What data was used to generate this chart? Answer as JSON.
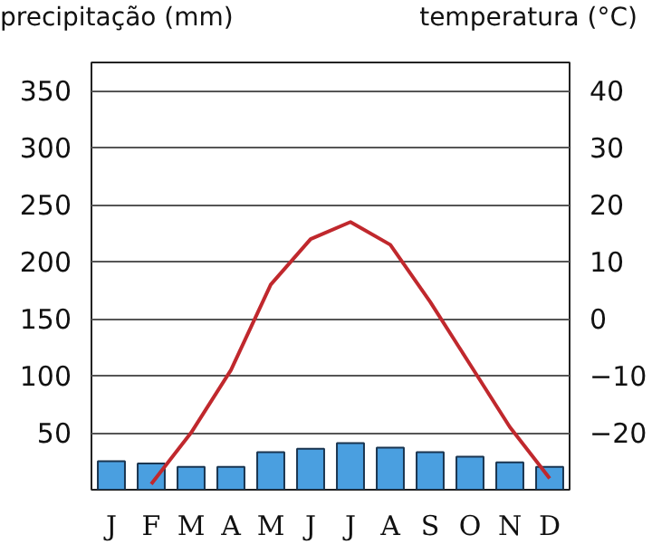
{
  "chart_data": {
    "type": "bar",
    "ylabel": "precipitação (mm)",
    "y2label": "temperatura (°C)",
    "categories": [
      "J",
      "F",
      "M",
      "A",
      "M",
      "J",
      "J",
      "A",
      "S",
      "O",
      "N",
      "D"
    ],
    "series": [
      {
        "color": "#4a9fe0",
        "values": [
          25,
          23,
          20,
          20,
          33,
          36,
          41,
          37,
          33,
          29,
          24,
          20
        ]
      },
      {
        "type": "line",
        "axis": "y2",
        "color": "#c0282d",
        "values": [
          null,
          -29,
          -20,
          -9,
          6,
          14,
          17,
          13,
          3,
          -8,
          -19,
          -28
        ]
      }
    ],
    "ylim": [
      0,
      375
    ],
    "yticks": [
      50,
      100,
      150,
      200,
      250,
      300,
      350
    ],
    "y2lim": [
      -30,
      45
    ],
    "y2ticks": [
      {
        "value": -20,
        "label": "−20"
      },
      {
        "value": -10,
        "label": "−10"
      },
      0,
      10,
      20,
      30,
      40
    ],
    "grid": "y",
    "marker": "none",
    "line_style": "solid"
  }
}
